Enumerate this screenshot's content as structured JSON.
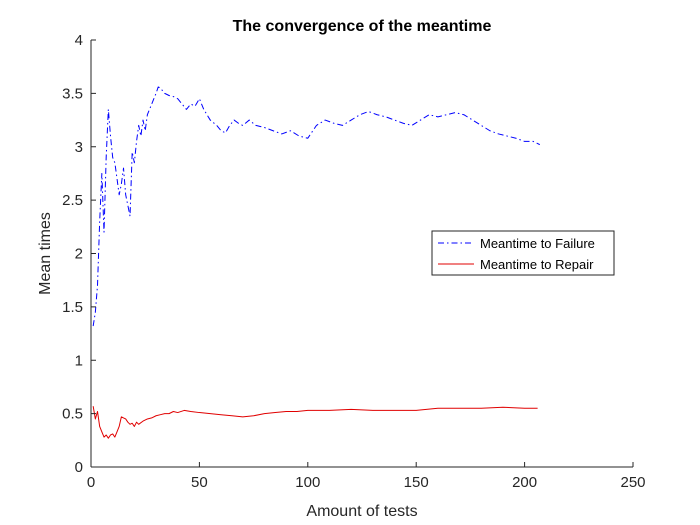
{
  "chart_data": {
    "type": "line",
    "title": "The convergence of the meantime",
    "xlabel": "Amount of tests",
    "ylabel": "Mean times",
    "xlim": [
      0,
      250
    ],
    "ylim": [
      0,
      4
    ],
    "xticks": [
      0,
      50,
      100,
      150,
      200,
      250
    ],
    "yticks": [
      0,
      0.5,
      1,
      1.5,
      2,
      2.5,
      3,
      3.5,
      4
    ],
    "grid": false,
    "legend_position": "right",
    "series": [
      {
        "name": "Meantime to Failure",
        "color": "#0000ff",
        "style": "dash-dot",
        "x": [
          1,
          2,
          3,
          4,
          5,
          6,
          7,
          8,
          9,
          10,
          11,
          12,
          13,
          14,
          15,
          16,
          17,
          18,
          19,
          20,
          21,
          22,
          23,
          24,
          25,
          26,
          27,
          28,
          29,
          30,
          31,
          32,
          34,
          36,
          38,
          40,
          42,
          44,
          46,
          48,
          50,
          52,
          55,
          58,
          60,
          62,
          64,
          66,
          68,
          70,
          73,
          76,
          80,
          84,
          88,
          92,
          96,
          100,
          104,
          108,
          112,
          116,
          120,
          124,
          128,
          132,
          136,
          140,
          144,
          148,
          152,
          156,
          160,
          164,
          168,
          172,
          176,
          180,
          184,
          188,
          192,
          196,
          200,
          204,
          207
        ],
        "values": [
          1.32,
          1.45,
          1.7,
          2.3,
          2.75,
          2.2,
          2.9,
          3.35,
          3.1,
          2.9,
          2.85,
          2.7,
          2.55,
          2.65,
          2.8,
          2.55,
          2.45,
          2.35,
          2.95,
          2.85,
          3.05,
          3.2,
          3.1,
          3.25,
          3.15,
          3.3,
          3.35,
          3.4,
          3.45,
          3.5,
          3.56,
          3.55,
          3.5,
          3.48,
          3.47,
          3.45,
          3.4,
          3.35,
          3.4,
          3.38,
          3.45,
          3.35,
          3.25,
          3.2,
          3.15,
          3.13,
          3.2,
          3.25,
          3.22,
          3.2,
          3.25,
          3.2,
          3.18,
          3.15,
          3.12,
          3.15,
          3.1,
          3.08,
          3.2,
          3.25,
          3.22,
          3.2,
          3.25,
          3.3,
          3.33,
          3.3,
          3.28,
          3.25,
          3.22,
          3.2,
          3.25,
          3.3,
          3.28,
          3.3,
          3.32,
          3.3,
          3.25,
          3.2,
          3.15,
          3.12,
          3.1,
          3.08,
          3.05,
          3.05,
          3.02
        ]
      },
      {
        "name": "Meantime to Repair",
        "color": "#e00000",
        "style": "solid",
        "x": [
          1,
          2,
          3,
          4,
          5,
          6,
          7,
          8,
          9,
          10,
          11,
          12,
          13,
          14,
          15,
          16,
          17,
          18,
          19,
          20,
          21,
          22,
          24,
          26,
          28,
          30,
          32,
          34,
          36,
          38,
          40,
          43,
          46,
          50,
          55,
          60,
          65,
          70,
          75,
          80,
          85,
          90,
          95,
          100,
          110,
          120,
          130,
          140,
          150,
          160,
          170,
          180,
          190,
          200,
          206
        ],
        "values": [
          0.57,
          0.45,
          0.52,
          0.38,
          0.33,
          0.28,
          0.3,
          0.27,
          0.3,
          0.31,
          0.28,
          0.33,
          0.38,
          0.47,
          0.46,
          0.45,
          0.42,
          0.4,
          0.41,
          0.38,
          0.42,
          0.4,
          0.43,
          0.45,
          0.46,
          0.48,
          0.49,
          0.5,
          0.5,
          0.52,
          0.51,
          0.53,
          0.52,
          0.51,
          0.5,
          0.49,
          0.48,
          0.47,
          0.48,
          0.5,
          0.51,
          0.52,
          0.52,
          0.53,
          0.53,
          0.54,
          0.53,
          0.53,
          0.53,
          0.55,
          0.55,
          0.55,
          0.56,
          0.55,
          0.55
        ]
      }
    ]
  }
}
